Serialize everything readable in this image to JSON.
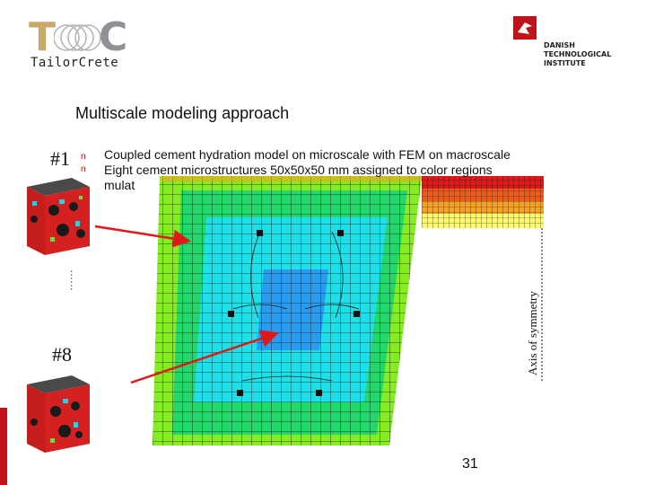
{
  "logos": {
    "left_wordmark": "TailorCrete",
    "right_lines": [
      "DANISH",
      "TECHNOLOGICAL",
      "INSTITUTE"
    ]
  },
  "slide": {
    "title": "Multiscale modeling approach",
    "bullets": [
      "Coupled cement hydration model on microscale with FEM on macroscale",
      "Eight cement microstructures 50x50x50 mm assigned to color regions",
      "mulat"
    ],
    "marker_first": "#1",
    "marker_last": "#8",
    "ellipsis": "……",
    "axis_label": "Axis of symmetry",
    "page_number": "31"
  },
  "colors": {
    "brand_red": "#c0121a",
    "arrow": "#e01818",
    "mesh_lime": "#86ec22",
    "mesh_green": "#22d86a",
    "mesh_cyan": "#1ee0e8",
    "mesh_blue": "#2a9cf0",
    "cube_red": "#d42020"
  },
  "icons": {
    "left_logo": "tailorcrete-logo-icon",
    "right_logo": "dti-logo-icon",
    "cube": "microstructure-cube-icon"
  }
}
